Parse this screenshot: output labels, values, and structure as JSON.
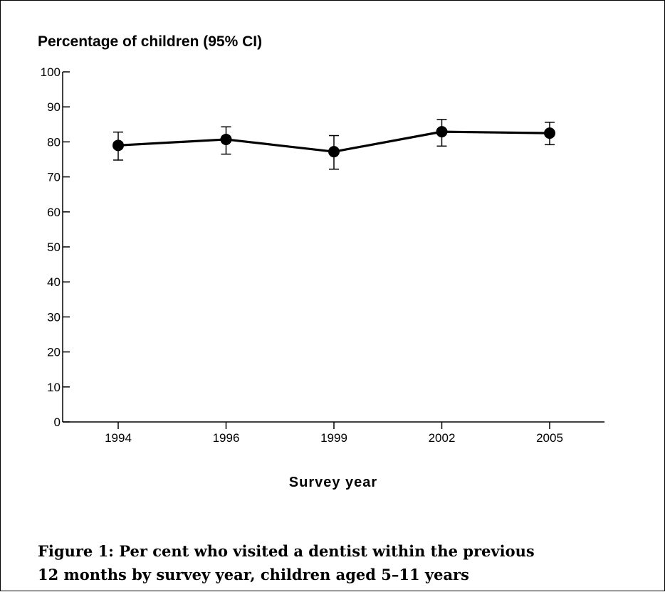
{
  "chart_data": {
    "type": "line",
    "title": "",
    "ylabel": "Percentage of children (95% CI)",
    "xlabel": "Survey year",
    "categories": [
      "1994",
      "1996",
      "1999",
      "2002",
      "2005"
    ],
    "series": [
      {
        "values": [
          79.0,
          80.7,
          77.2,
          82.9,
          82.5
        ],
        "ci_lower": [
          74.8,
          76.5,
          72.2,
          78.8,
          79.2
        ],
        "ci_upper": [
          82.8,
          84.3,
          81.8,
          86.4,
          85.6
        ]
      }
    ],
    "ylim": [
      0,
      100
    ],
    "yticks": [
      "0",
      "10",
      "20",
      "30",
      "40",
      "50",
      "60",
      "70",
      "80",
      "90",
      "100"
    ],
    "grid": false,
    "legend": "none"
  },
  "caption": {
    "line1": "Figure 1: Per cent who visited a dentist within the previous",
    "line2": "12 months by survey year, children aged 5–11 years"
  },
  "colors": {
    "line": "#000000",
    "marker": "#000000",
    "background": "#ffffff"
  }
}
